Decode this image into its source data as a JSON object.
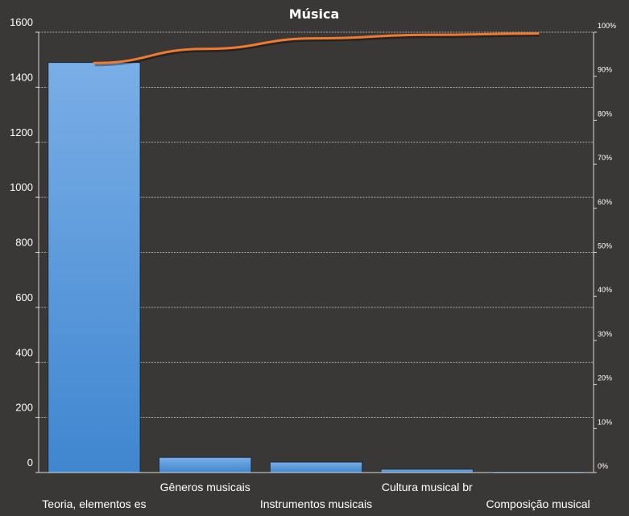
{
  "chart_data": {
    "type": "bar",
    "title": "Música",
    "categories": [
      "Teoria, elementos es",
      "Gêneros musicais",
      "Instrumentos  musicais",
      "Cultura musical br",
      "Composição musical"
    ],
    "series": [
      {
        "type": "bar",
        "values": [
          1490,
          55,
          38,
          12,
          4
        ]
      },
      {
        "type": "line",
        "axis": "secondary",
        "values": [
          93,
          96.2,
          98.6,
          99.4,
          99.7
        ]
      }
    ],
    "ylim": [
      0,
      1600
    ],
    "yticks": [
      0,
      200,
      400,
      600,
      800,
      1000,
      1200,
      1400,
      1600
    ],
    "y2lim": [
      0,
      100
    ],
    "y2ticks": [
      "0%",
      "10%",
      "20%",
      "30%",
      "40%",
      "50%",
      "60%",
      "70%",
      "80%",
      "90%",
      "100%"
    ],
    "grid": true,
    "legend": "none",
    "colors": {
      "bar": "#4a8fd8",
      "line": "#ee7b2f",
      "background": "#3a3836",
      "grid": "#cfcfcf"
    }
  }
}
